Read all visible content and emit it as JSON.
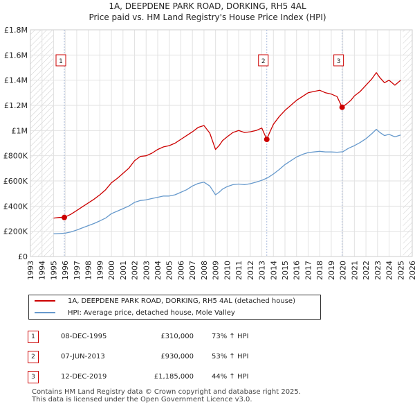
{
  "header": {
    "title": "1A, DEEPDENE PARK ROAD, DORKING, RH5 4AL",
    "subtitle": "Price paid vs. HM Land Registry's House Price Index (HPI)"
  },
  "chart_data": {
    "type": "line",
    "title": "1A, DEEPDENE PARK ROAD, DORKING, RH5 4AL",
    "subtitle": "Price paid vs. HM Land Registry's House Price Index (HPI)",
    "xlabel": "",
    "ylabel": "",
    "xlim": [
      1993,
      2026
    ],
    "ylim": [
      0,
      1800000
    ],
    "x_ticks": [
      1993,
      1994,
      1995,
      1996,
      1997,
      1998,
      1999,
      2000,
      2001,
      2002,
      2003,
      2004,
      2005,
      2006,
      2007,
      2008,
      2009,
      2010,
      2011,
      2012,
      2013,
      2014,
      2015,
      2016,
      2017,
      2018,
      2019,
      2020,
      2021,
      2022,
      2023,
      2024,
      2025,
      2026
    ],
    "y_ticks": [
      {
        "value": 0,
        "label": "£0"
      },
      {
        "value": 200000,
        "label": "£200K"
      },
      {
        "value": 400000,
        "label": "£400K"
      },
      {
        "value": 600000,
        "label": "£600K"
      },
      {
        "value": 800000,
        "label": "£800K"
      },
      {
        "value": 1000000,
        "label": "£1M"
      },
      {
        "value": 1200000,
        "label": "£1.2M"
      },
      {
        "value": 1400000,
        "label": "£1.4M"
      },
      {
        "value": 1600000,
        "label": "£1.6M"
      },
      {
        "value": 1800000,
        "label": "£1.8M"
      }
    ],
    "grid": true,
    "hatched_ranges": [
      [
        1993,
        1995.0
      ],
      [
        2025.2,
        2026
      ]
    ],
    "series": [
      {
        "name": "1A, DEEPDENE PARK ROAD, DORKING, RH5 4AL (detached house)",
        "color": "#cc0000",
        "x": [
          1995.0,
          1995.5,
          1995.93,
          1996.5,
          1997.0,
          1997.5,
          1998.0,
          1998.5,
          1999.0,
          1999.5,
          2000.0,
          2000.5,
          2001.0,
          2001.5,
          2002.0,
          2002.5,
          2003.0,
          2003.5,
          2004.0,
          2004.5,
          2005.0,
          2005.5,
          2006.0,
          2006.5,
          2007.0,
          2007.5,
          2008.0,
          2008.5,
          2009.0,
          2009.3,
          2009.6,
          2010.0,
          2010.5,
          2011.0,
          2011.5,
          2012.0,
          2012.5,
          2013.0,
          2013.43,
          2013.7,
          2014.0,
          2014.5,
          2015.0,
          2015.5,
          2016.0,
          2016.5,
          2017.0,
          2017.5,
          2018.0,
          2018.5,
          2019.0,
          2019.5,
          2019.94,
          2020.3,
          2020.7,
          2021.0,
          2021.5,
          2022.0,
          2022.5,
          2022.9,
          2023.2,
          2023.6,
          2024.0,
          2024.5,
          2025.0
        ],
        "y": [
          305000,
          310000,
          310000,
          335000,
          365000,
          395000,
          425000,
          455000,
          490000,
          530000,
          585000,
          620000,
          660000,
          700000,
          760000,
          795000,
          800000,
          820000,
          850000,
          870000,
          880000,
          900000,
          930000,
          960000,
          990000,
          1025000,
          1040000,
          980000,
          850000,
          880000,
          920000,
          950000,
          985000,
          1000000,
          985000,
          990000,
          1000000,
          1020000,
          930000,
          990000,
          1050000,
          1110000,
          1160000,
          1200000,
          1240000,
          1270000,
          1300000,
          1310000,
          1320000,
          1300000,
          1290000,
          1270000,
          1185000,
          1210000,
          1240000,
          1275000,
          1310000,
          1360000,
          1410000,
          1460000,
          1420000,
          1380000,
          1400000,
          1360000,
          1400000
        ]
      },
      {
        "name": "HPI: Average price, detached house, Mole Valley",
        "color": "#6699cc",
        "x": [
          1995.0,
          1995.5,
          1996.0,
          1996.5,
          1997.0,
          1997.5,
          1998.0,
          1998.5,
          1999.0,
          1999.5,
          2000.0,
          2000.5,
          2001.0,
          2001.5,
          2002.0,
          2002.5,
          2003.0,
          2003.5,
          2004.0,
          2004.5,
          2005.0,
          2005.5,
          2006.0,
          2006.5,
          2007.0,
          2007.5,
          2008.0,
          2008.5,
          2009.0,
          2009.3,
          2009.6,
          2010.0,
          2010.5,
          2011.0,
          2011.5,
          2012.0,
          2012.5,
          2013.0,
          2013.5,
          2014.0,
          2014.5,
          2015.0,
          2015.5,
          2016.0,
          2016.5,
          2017.0,
          2017.5,
          2018.0,
          2018.5,
          2019.0,
          2019.5,
          2020.0,
          2020.5,
          2021.0,
          2021.5,
          2022.0,
          2022.5,
          2022.9,
          2023.2,
          2023.6,
          2024.0,
          2024.5,
          2025.0
        ],
        "y": [
          180000,
          182000,
          185000,
          195000,
          210000,
          228000,
          245000,
          262000,
          283000,
          305000,
          340000,
          360000,
          380000,
          400000,
          430000,
          445000,
          450000,
          460000,
          470000,
          480000,
          480000,
          490000,
          510000,
          530000,
          560000,
          580000,
          590000,
          560000,
          490000,
          510000,
          535000,
          555000,
          570000,
          575000,
          570000,
          578000,
          590000,
          605000,
          625000,
          655000,
          690000,
          730000,
          760000,
          790000,
          810000,
          825000,
          830000,
          835000,
          830000,
          830000,
          828000,
          832000,
          860000,
          880000,
          905000,
          935000,
          975000,
          1010000,
          985000,
          960000,
          970000,
          950000,
          965000
        ]
      }
    ],
    "sales": [
      {
        "label": "1",
        "x": 1995.93,
        "y": 310000
      },
      {
        "label": "2",
        "x": 2013.43,
        "y": 930000
      },
      {
        "label": "3",
        "x": 2019.94,
        "y": 1185000
      }
    ]
  },
  "legend": {
    "property_label": "1A, DEEPDENE PARK ROAD, DORKING, RH5 4AL (detached house)",
    "hpi_label": "HPI: Average price, detached house, Mole Valley"
  },
  "transactions": [
    {
      "num": "1",
      "date": "08-DEC-1995",
      "price": "£310,000",
      "hpi": "73% ↑ HPI"
    },
    {
      "num": "2",
      "date": "07-JUN-2013",
      "price": "£930,000",
      "hpi": "53% ↑ HPI"
    },
    {
      "num": "3",
      "date": "12-DEC-2019",
      "price": "£1,185,000",
      "hpi": "44% ↑ HPI"
    }
  ],
  "footer": {
    "line1": "Contains HM Land Registry data © Crown copyright and database right 2025.",
    "line2": "This data is licensed under the Open Government Licence v3.0."
  }
}
